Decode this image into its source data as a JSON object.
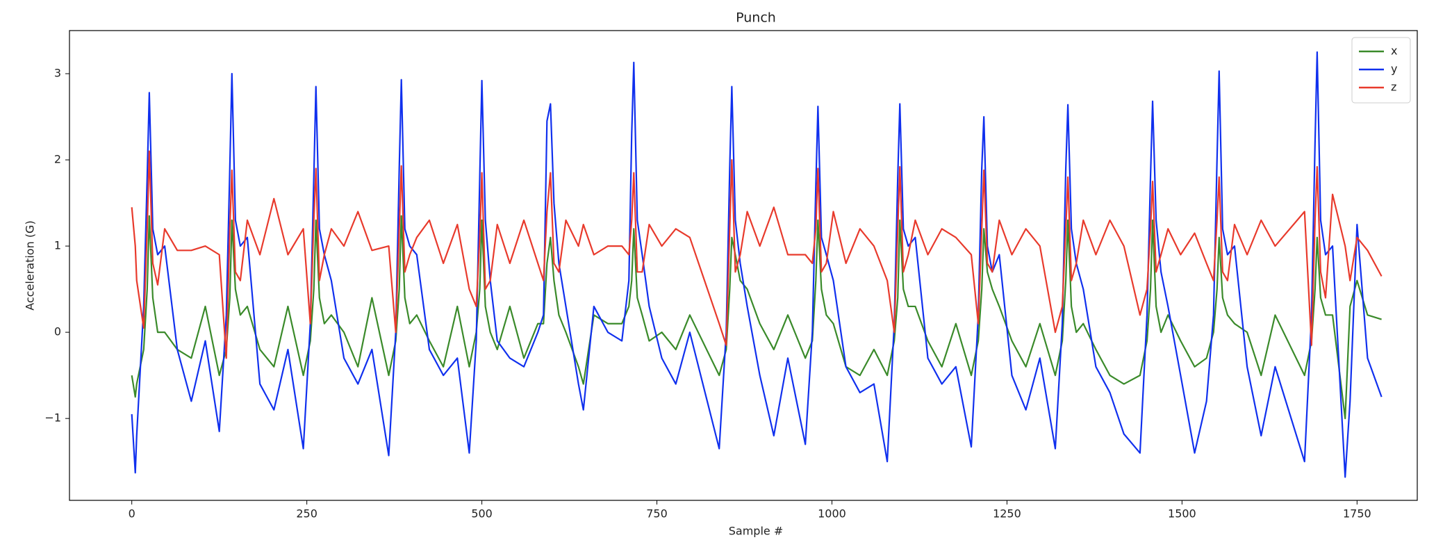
{
  "chart_data": {
    "type": "line",
    "title": "Punch",
    "xlabel": "Sample #",
    "ylabel": "Acceleration (G)",
    "x": [
      0,
      5,
      7,
      17,
      22,
      25,
      30,
      37,
      47,
      65,
      85,
      105,
      125,
      135,
      140,
      143,
      148,
      155,
      165,
      183,
      203,
      223,
      245,
      255,
      260,
      263,
      268,
      275,
      285,
      303,
      323,
      343,
      367,
      377,
      382,
      385,
      390,
      397,
      407,
      425,
      445,
      465,
      482,
      492,
      497,
      500,
      505,
      512,
      522,
      540,
      560,
      580,
      588,
      593,
      598,
      603,
      610,
      620,
      638,
      645,
      660,
      680,
      700,
      710,
      714,
      717,
      722,
      729,
      739,
      757,
      777,
      797,
      839,
      849,
      854,
      857,
      862,
      869,
      879,
      897,
      917,
      937,
      962,
      972,
      977,
      980,
      985,
      992,
      1002,
      1020,
      1040,
      1060,
      1079,
      1089,
      1094,
      1097,
      1102,
      1109,
      1119,
      1137,
      1157,
      1177,
      1199,
      1209,
      1214,
      1217,
      1222,
      1229,
      1239,
      1257,
      1277,
      1297,
      1319,
      1329,
      1334,
      1337,
      1342,
      1349,
      1359,
      1377,
      1397,
      1417,
      1440,
      1450,
      1455,
      1458,
      1463,
      1470,
      1480,
      1498,
      1518,
      1535,
      1545,
      1550,
      1553,
      1558,
      1565,
      1575,
      1593,
      1613,
      1633,
      1675,
      1685,
      1690,
      1693,
      1698,
      1705,
      1715,
      1733,
      1740,
      1750,
      1765,
      1785
    ],
    "series": [
      {
        "name": "x",
        "color": "#3a8a2a",
        "values": [
          -0.5,
          -0.75,
          -0.6,
          -0.2,
          0.5,
          1.35,
          0.4,
          0.0,
          0.0,
          -0.2,
          -0.3,
          0.3,
          -0.5,
          -0.2,
          0.4,
          1.3,
          0.5,
          0.2,
          0.3,
          -0.2,
          -0.4,
          0.3,
          -0.5,
          -0.1,
          0.5,
          1.3,
          0.4,
          0.1,
          0.2,
          0.0,
          -0.4,
          0.4,
          -0.5,
          -0.1,
          0.5,
          1.35,
          0.4,
          0.1,
          0.2,
          -0.1,
          -0.4,
          0.3,
          -0.4,
          0.0,
          0.5,
          1.3,
          0.3,
          0.0,
          -0.2,
          0.3,
          -0.3,
          0.1,
          0.1,
          0.8,
          1.1,
          0.6,
          0.2,
          0.0,
          -0.4,
          -0.6,
          0.2,
          0.1,
          0.1,
          0.3,
          0.6,
          1.2,
          0.4,
          0.2,
          -0.1,
          0.0,
          -0.2,
          0.2,
          -0.5,
          -0.2,
          0.5,
          1.1,
          0.9,
          0.6,
          0.5,
          0.1,
          -0.2,
          0.2,
          -0.3,
          -0.1,
          0.6,
          1.3,
          0.5,
          0.2,
          0.1,
          -0.4,
          -0.5,
          -0.2,
          -0.5,
          -0.1,
          0.4,
          1.3,
          0.5,
          0.3,
          0.3,
          -0.1,
          -0.4,
          0.1,
          -0.5,
          -0.1,
          0.5,
          1.2,
          0.7,
          0.5,
          0.3,
          -0.1,
          -0.4,
          0.1,
          -0.5,
          -0.1,
          0.6,
          1.3,
          0.3,
          0.0,
          0.1,
          -0.2,
          -0.5,
          -0.6,
          -0.5,
          -0.1,
          0.5,
          1.3,
          0.3,
          0.0,
          0.2,
          -0.1,
          -0.4,
          -0.3,
          0.0,
          0.5,
          1.1,
          0.4,
          0.2,
          0.1,
          0.0,
          -0.5,
          0.2,
          -0.5,
          -0.1,
          0.5,
          1.1,
          0.4,
          0.2,
          0.2,
          -1.0,
          0.3,
          0.6,
          0.2,
          0.15
        ]
      },
      {
        "name": "y",
        "color": "#1030ee",
        "values": [
          -0.95,
          -1.63,
          -1.2,
          0.3,
          1.8,
          2.78,
          1.2,
          0.9,
          1.0,
          -0.2,
          -0.8,
          -0.1,
          -1.15,
          0.2,
          1.9,
          3.0,
          1.3,
          1.0,
          1.1,
          -0.6,
          -0.9,
          -0.2,
          -1.35,
          0.1,
          1.8,
          2.85,
          1.2,
          0.9,
          0.6,
          -0.3,
          -0.6,
          -0.2,
          -1.43,
          0.0,
          1.9,
          2.93,
          1.2,
          1.0,
          0.9,
          -0.2,
          -0.5,
          -0.3,
          -1.4,
          -0.1,
          1.8,
          2.92,
          1.3,
          0.6,
          -0.1,
          -0.3,
          -0.4,
          0.0,
          0.2,
          2.45,
          2.65,
          1.5,
          0.8,
          0.3,
          -0.6,
          -0.9,
          0.3,
          0.0,
          -0.1,
          0.6,
          2.3,
          3.13,
          1.3,
          0.9,
          0.3,
          -0.3,
          -0.6,
          0.0,
          -1.35,
          0.0,
          1.9,
          2.85,
          1.3,
          0.8,
          0.3,
          -0.5,
          -1.2,
          -0.3,
          -1.3,
          0.0,
          1.7,
          2.62,
          1.1,
          0.9,
          0.6,
          -0.4,
          -0.7,
          -0.6,
          -1.5,
          0.1,
          1.8,
          2.65,
          1.2,
          1.0,
          1.1,
          -0.3,
          -0.6,
          -0.4,
          -1.33,
          0.2,
          1.9,
          2.5,
          1.0,
          0.7,
          0.9,
          -0.5,
          -0.9,
          -0.3,
          -1.35,
          0.1,
          1.9,
          2.64,
          1.2,
          0.8,
          0.5,
          -0.4,
          -0.7,
          -1.18,
          -1.4,
          0.2,
          1.8,
          2.68,
          1.3,
          0.7,
          0.3,
          -0.5,
          -1.4,
          -0.8,
          0.2,
          2.0,
          3.03,
          1.2,
          0.9,
          1.0,
          -0.4,
          -1.2,
          -0.4,
          -1.5,
          0.2,
          2.2,
          3.25,
          1.3,
          0.9,
          1.0,
          -1.68,
          -0.8,
          1.25,
          -0.3,
          -0.75
        ]
      },
      {
        "name": "z",
        "color": "#e83a2c",
        "values": [
          1.45,
          1.0,
          0.6,
          0.05,
          1.2,
          2.1,
          0.8,
          0.55,
          1.2,
          0.95,
          0.95,
          1.0,
          0.9,
          -0.3,
          1.2,
          1.88,
          0.7,
          0.6,
          1.3,
          0.9,
          1.55,
          0.9,
          1.2,
          0.1,
          1.3,
          1.9,
          0.6,
          0.9,
          1.2,
          1.0,
          1.4,
          0.95,
          1.0,
          0.0,
          1.2,
          1.93,
          0.7,
          0.9,
          1.1,
          1.3,
          0.8,
          1.25,
          0.5,
          0.3,
          1.1,
          1.85,
          0.5,
          0.6,
          1.25,
          0.8,
          1.3,
          0.8,
          0.6,
          1.4,
          1.85,
          0.8,
          0.7,
          1.3,
          1.0,
          1.25,
          0.9,
          1.0,
          1.0,
          0.9,
          1.3,
          1.85,
          0.7,
          0.7,
          1.25,
          1.0,
          1.2,
          1.1,
          0.1,
          -0.15,
          1.2,
          2.0,
          0.7,
          0.9,
          1.4,
          1.0,
          1.45,
          0.9,
          0.9,
          0.8,
          1.2,
          1.9,
          0.7,
          0.8,
          1.4,
          0.8,
          1.2,
          1.0,
          0.6,
          0.0,
          1.2,
          1.92,
          0.7,
          0.9,
          1.3,
          0.9,
          1.2,
          1.1,
          0.9,
          0.1,
          1.2,
          1.88,
          0.8,
          0.7,
          1.3,
          0.9,
          1.2,
          1.0,
          0.0,
          0.3,
          1.2,
          1.8,
          0.6,
          0.8,
          1.3,
          0.9,
          1.3,
          1.0,
          0.2,
          0.5,
          1.2,
          1.75,
          0.7,
          0.9,
          1.2,
          0.9,
          1.15,
          0.8,
          0.6,
          1.3,
          1.8,
          0.7,
          0.6,
          1.25,
          0.9,
          1.3,
          1.0,
          1.4,
          -0.15,
          1.3,
          1.92,
          0.7,
          0.4,
          1.6,
          1.0,
          0.6,
          1.1,
          0.95,
          0.65
        ]
      }
    ],
    "xlim": [
      -89,
      1836
    ],
    "ylim": [
      -1.95,
      3.5
    ],
    "xticks": [
      0,
      250,
      500,
      750,
      1000,
      1250,
      1500,
      1750
    ],
    "yticks": [
      {
        "value": -1,
        "label": "−1"
      },
      0,
      1,
      2,
      3
    ],
    "grid": false,
    "legend": "upper right"
  }
}
